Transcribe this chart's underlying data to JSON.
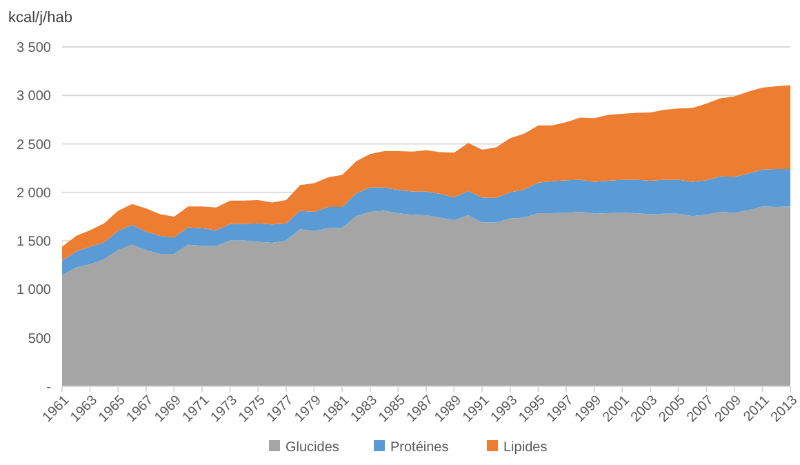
{
  "chart_data": {
    "type": "area",
    "stacked": true,
    "ylabel": "kcal/j/hab",
    "x": [
      1961,
      1962,
      1963,
      1964,
      1965,
      1966,
      1967,
      1968,
      1969,
      1970,
      1971,
      1972,
      1973,
      1974,
      1975,
      1976,
      1977,
      1978,
      1979,
      1980,
      1981,
      1982,
      1983,
      1984,
      1985,
      1986,
      1987,
      1988,
      1989,
      1990,
      1991,
      1992,
      1993,
      1994,
      1995,
      1996,
      1997,
      1998,
      1999,
      2000,
      2001,
      2002,
      2003,
      2004,
      2005,
      2006,
      2007,
      2008,
      2009,
      2010,
      2011,
      2012,
      2013
    ],
    "series": [
      {
        "name": "Glucides",
        "color": "#a5a5a5",
        "values": [
          1145,
          1225,
          1260,
          1310,
          1405,
          1460,
          1405,
          1365,
          1365,
          1460,
          1450,
          1445,
          1505,
          1505,
          1490,
          1480,
          1505,
          1620,
          1600,
          1630,
          1635,
          1755,
          1800,
          1810,
          1785,
          1770,
          1765,
          1740,
          1715,
          1765,
          1690,
          1690,
          1730,
          1740,
          1785,
          1785,
          1790,
          1800,
          1780,
          1785,
          1790,
          1785,
          1775,
          1780,
          1780,
          1755,
          1770,
          1800,
          1790,
          1815,
          1855,
          1850,
          1855
        ]
      },
      {
        "name": "Protéines",
        "color": "#5b9bd5",
        "values": [
          150,
          165,
          180,
          175,
          200,
          205,
          190,
          185,
          170,
          180,
          180,
          165,
          170,
          170,
          190,
          190,
          175,
          190,
          200,
          220,
          215,
          235,
          250,
          240,
          240,
          240,
          245,
          245,
          235,
          250,
          255,
          255,
          270,
          290,
          315,
          330,
          335,
          330,
          330,
          335,
          340,
          345,
          345,
          350,
          350,
          355,
          355,
          365,
          370,
          380,
          380,
          390,
          385
        ]
      },
      {
        "name": "Lipides",
        "color": "#ed7d31",
        "values": [
          145,
          160,
          170,
          195,
          205,
          215,
          240,
          225,
          215,
          215,
          225,
          235,
          240,
          240,
          240,
          225,
          240,
          265,
          295,
          305,
          330,
          330,
          345,
          375,
          400,
          410,
          425,
          430,
          460,
          495,
          495,
          520,
          560,
          575,
          590,
          575,
          600,
          640,
          655,
          680,
          680,
          690,
          705,
          720,
          735,
          760,
          790,
          805,
          830,
          845,
          845,
          855,
          865
        ]
      }
    ],
    "xlim": [
      1961,
      2013
    ],
    "xticks": [
      1961,
      1963,
      1965,
      1967,
      1969,
      1971,
      1973,
      1975,
      1977,
      1979,
      1981,
      1983,
      1985,
      1987,
      1989,
      1991,
      1993,
      1995,
      1997,
      1999,
      2001,
      2003,
      2005,
      2007,
      2009,
      2011,
      2013
    ],
    "ylim": [
      0,
      3500
    ],
    "yticks": [
      {
        "value": 0,
        "label": "-"
      },
      500,
      {
        "value": 1000,
        "label": "1 000"
      },
      {
        "value": 1500,
        "label": "1 500"
      },
      {
        "value": 2000,
        "label": "2 000"
      },
      {
        "value": 2500,
        "label": "2 500"
      },
      {
        "value": 3000,
        "label": "3 000"
      },
      {
        "value": 3500,
        "label": "3 500"
      }
    ],
    "grid": "y",
    "legend": "bottom"
  }
}
